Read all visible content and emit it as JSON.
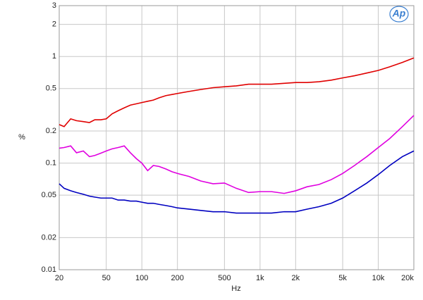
{
  "chart_data": {
    "type": "line",
    "xlabel": "Hz",
    "ylabel": "%",
    "logo": "Ap",
    "xscale": "log",
    "yscale": "log",
    "grid": true,
    "x": [
      20,
      22,
      25,
      28,
      32,
      36,
      40,
      45,
      50,
      56,
      63,
      71,
      80,
      90,
      100,
      112,
      125,
      140,
      160,
      180,
      200,
      250,
      315,
      400,
      500,
      630,
      800,
      1000,
      1250,
      1600,
      2000,
      2500,
      3150,
      4000,
      5000,
      6300,
      8000,
      10000,
      12500,
      16000,
      20000
    ],
    "series": [
      {
        "color": "#e00000",
        "values": [
          0.23,
          0.22,
          0.26,
          0.25,
          0.245,
          0.24,
          0.255,
          0.255,
          0.26,
          0.29,
          0.31,
          0.33,
          0.35,
          0.36,
          0.37,
          0.38,
          0.39,
          0.41,
          0.43,
          0.44,
          0.45,
          0.47,
          0.49,
          0.51,
          0.52,
          0.53,
          0.55,
          0.55,
          0.55,
          0.56,
          0.57,
          0.57,
          0.58,
          0.6,
          0.63,
          0.66,
          0.7,
          0.74,
          0.8,
          0.88,
          0.97
        ]
      },
      {
        "color": "#e000e0",
        "values": [
          0.138,
          0.14,
          0.145,
          0.125,
          0.13,
          0.115,
          0.118,
          0.124,
          0.13,
          0.136,
          0.14,
          0.145,
          0.125,
          0.11,
          0.1,
          0.085,
          0.095,
          0.093,
          0.088,
          0.083,
          0.08,
          0.075,
          0.068,
          0.064,
          0.065,
          0.058,
          0.053,
          0.054,
          0.054,
          0.052,
          0.055,
          0.06,
          0.063,
          0.07,
          0.08,
          0.095,
          0.115,
          0.14,
          0.17,
          0.22,
          0.28
        ]
      },
      {
        "color": "#0000c0",
        "values": [
          0.064,
          0.058,
          0.055,
          0.053,
          0.051,
          0.049,
          0.048,
          0.047,
          0.047,
          0.047,
          0.045,
          0.045,
          0.044,
          0.044,
          0.043,
          0.042,
          0.042,
          0.041,
          0.04,
          0.039,
          0.038,
          0.037,
          0.036,
          0.035,
          0.035,
          0.034,
          0.034,
          0.034,
          0.034,
          0.035,
          0.035,
          0.037,
          0.039,
          0.042,
          0.047,
          0.055,
          0.065,
          0.078,
          0.095,
          0.115,
          0.13
        ]
      }
    ],
    "xlim": [
      20,
      20000
    ],
    "xticks": [
      20,
      50,
      100,
      200,
      500,
      {
        "value": 1000,
        "label": "1k"
      },
      {
        "value": 2000,
        "label": "2k"
      },
      {
        "value": 5000,
        "label": "5k"
      },
      {
        "value": 10000,
        "label": "10k"
      },
      {
        "value": 20000,
        "label": "20k"
      }
    ],
    "ylim": [
      0.01,
      3
    ],
    "yticks": [
      0.01,
      0.02,
      0.05,
      0.1,
      0.2,
      0.5,
      1,
      2,
      3
    ]
  }
}
